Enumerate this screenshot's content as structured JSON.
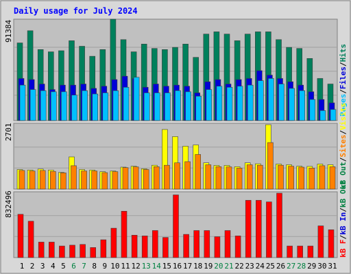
{
  "title": "Daily usage for July 2024",
  "colors": {
    "background": "#d8d8d8",
    "panel": "#c0c0c0",
    "hits": "#00805c",
    "files": "#0000d8",
    "pages": "#00c0ff",
    "visits": "#ffff00",
    "sites": "#ff8000",
    "kb_in": "#ff0000",
    "weekend_label": "#008040",
    "title": "#0000ff"
  },
  "chart_data": [
    {
      "type": "bar",
      "panel": "top",
      "scale_label": "91384",
      "ylim": [
        0,
        91384
      ],
      "legend": {
        "pages": "Pages",
        "files": "Files",
        "hits": "Hits",
        "sep": "/"
      },
      "categories": [
        "1",
        "2",
        "3",
        "4",
        "5",
        "6",
        "7",
        "8",
        "9",
        "10",
        "11",
        "12",
        "13",
        "14",
        "15",
        "16",
        "17",
        "18",
        "19",
        "20",
        "21",
        "22",
        "23",
        "24",
        "25",
        "26",
        "27",
        "28",
        "29",
        "30",
        "31"
      ],
      "weekend_days": [
        6,
        7,
        13,
        14,
        20,
        21,
        27,
        28
      ],
      "series": [
        {
          "name": "Hits",
          "values": [
            70000,
            81000,
            64000,
            62000,
            63000,
            72000,
            67000,
            58000,
            64000,
            91384,
            73000,
            62000,
            69000,
            65000,
            64000,
            66000,
            69000,
            57000,
            78000,
            80000,
            78000,
            72000,
            78000,
            80000,
            80000,
            73000,
            66000,
            65000,
            56000,
            38000,
            33000
          ]
        },
        {
          "name": "Files",
          "values": [
            38000,
            37000,
            33000,
            28000,
            32000,
            32000,
            33000,
            29000,
            31000,
            37000,
            40000,
            38000,
            30000,
            33000,
            31000,
            32000,
            31000,
            25000,
            35000,
            37000,
            33000,
            37000,
            38000,
            45000,
            41000,
            38000,
            35000,
            32000,
            26000,
            19000,
            16000
          ]
        },
        {
          "name": "Pages",
          "values": [
            32000,
            28000,
            27000,
            26000,
            26000,
            23000,
            27000,
            24000,
            25000,
            27000,
            30000,
            39000,
            25000,
            25000,
            25000,
            27000,
            26000,
            22000,
            28000,
            31000,
            30000,
            31000,
            32000,
            36000,
            38000,
            33000,
            29000,
            27000,
            19000,
            9000,
            10000
          ]
        }
      ]
    },
    {
      "type": "bar",
      "panel": "middle",
      "scale_label": "2701",
      "ylim": [
        0,
        2701
      ],
      "legend": {
        "visits": "Visits",
        "sites": "Sites",
        "kb_out": "kB Out",
        "sep": "/"
      },
      "categories": [
        "1",
        "2",
        "3",
        "4",
        "5",
        "6",
        "7",
        "8",
        "9",
        "10",
        "11",
        "12",
        "13",
        "14",
        "15",
        "16",
        "17",
        "18",
        "19",
        "20",
        "21",
        "22",
        "23",
        "24",
        "25",
        "26",
        "27",
        "28",
        "29",
        "30",
        "31"
      ],
      "series": [
        {
          "name": "Visits",
          "values": [
            820,
            800,
            840,
            800,
            700,
            1350,
            820,
            800,
            730,
            760,
            920,
            960,
            850,
            1000,
            2500,
            2200,
            1800,
            1850,
            1100,
            990,
            990,
            940,
            1100,
            1060,
            2701,
            1050,
            1020,
            960,
            950,
            1050,
            1020
          ]
        },
        {
          "name": "Sites",
          "values": [
            780,
            760,
            780,
            740,
            680,
            980,
            760,
            760,
            690,
            730,
            900,
            930,
            820,
            940,
            1000,
            1100,
            1150,
            1450,
            1020,
            940,
            930,
            880,
            1020,
            1000,
            1950,
            1000,
            960,
            920,
            880,
            980,
            940
          ]
        }
      ]
    },
    {
      "type": "bar",
      "panel": "bottom",
      "scale_label": "832496",
      "ylim": [
        0,
        832496
      ],
      "legend": {
        "kb_f": "kB F",
        "kb_in": "kB In",
        "kb_out": "kB Out",
        "sep": "/"
      },
      "categories": [
        "1",
        "2",
        "3",
        "4",
        "5",
        "6",
        "7",
        "8",
        "9",
        "10",
        "11",
        "12",
        "13",
        "14",
        "15",
        "16",
        "17",
        "18",
        "19",
        "20",
        "21",
        "22",
        "23",
        "24",
        "25",
        "26",
        "27",
        "28",
        "29",
        "30",
        "31"
      ],
      "series": [
        {
          "name": "kB In",
          "values": [
            560000,
            470000,
            200000,
            200000,
            150000,
            160000,
            170000,
            130000,
            230000,
            380000,
            600000,
            290000,
            280000,
            350000,
            260000,
            810000,
            300000,
            350000,
            350000,
            270000,
            350000,
            280000,
            740000,
            740000,
            720000,
            832496,
            150000,
            150000,
            150000,
            410000,
            360000
          ]
        }
      ]
    }
  ]
}
